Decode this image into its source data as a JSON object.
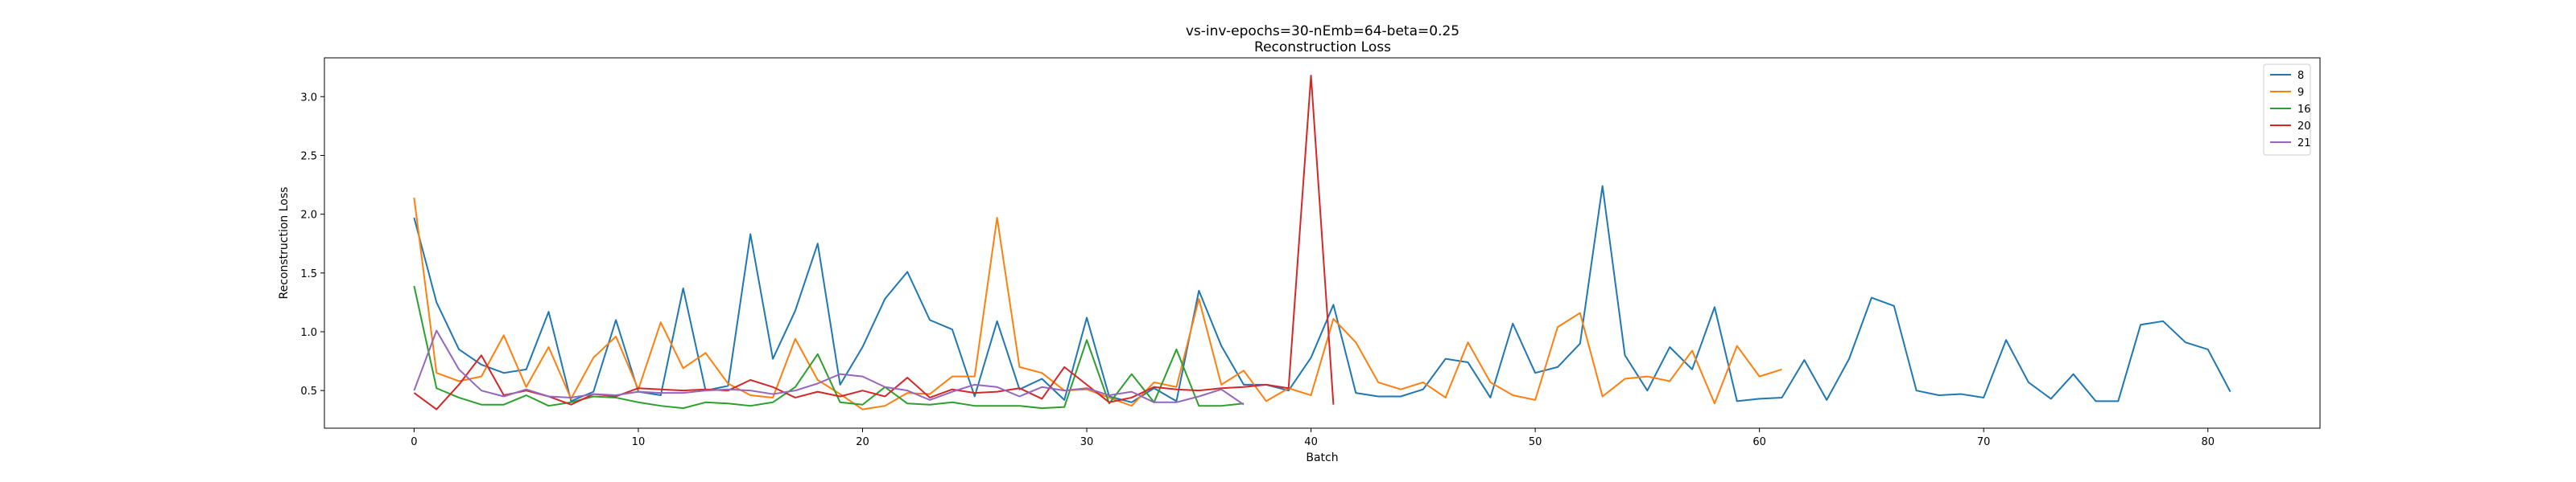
{
  "chart_data": {
    "type": "line",
    "title": "vs-inv-epochs=30-nEmb=64-beta=0.25",
    "subtitle": "Reconstruction Loss",
    "xlabel": "Batch",
    "ylabel": "Reconstruction Loss",
    "xlim": [
      -4,
      85
    ],
    "ylim": [
      0.18,
      3.33
    ],
    "xticks": [
      0,
      10,
      20,
      30,
      40,
      50,
      60,
      70,
      80
    ],
    "yticks": [
      0.5,
      1.0,
      1.5,
      2.0,
      2.5,
      3.0
    ],
    "grid": false,
    "legend_position": "top-right",
    "series": [
      {
        "name": "8",
        "color": "#1f77b4",
        "values": [
          1.97,
          1.25,
          0.85,
          0.72,
          0.65,
          0.68,
          1.17,
          0.41,
          0.49,
          1.1,
          0.49,
          0.46,
          1.37,
          0.5,
          0.54,
          1.83,
          0.77,
          1.18,
          1.75,
          0.55,
          0.87,
          1.28,
          1.51,
          1.1,
          1.02,
          0.45,
          1.09,
          0.51,
          0.6,
          0.42,
          1.12,
          0.45,
          0.4,
          0.52,
          0.41,
          1.35,
          0.88,
          0.55,
          0.55,
          0.5,
          0.78,
          1.23,
          0.48,
          0.45,
          0.45,
          0.51,
          0.77,
          0.74,
          0.44,
          1.07,
          0.65,
          0.7,
          0.9,
          2.24,
          0.8,
          0.5,
          0.87,
          0.68,
          1.21,
          0.41,
          0.43,
          0.44,
          0.76,
          0.42,
          0.77,
          1.29,
          1.22,
          0.5,
          0.46,
          0.47,
          0.44,
          0.93,
          0.57,
          0.43,
          0.64,
          0.41,
          0.41,
          1.06,
          1.09,
          0.91,
          0.85,
          0.49
        ]
      },
      {
        "name": "9",
        "color": "#ff7f0e",
        "values": [
          2.14,
          0.65,
          0.58,
          0.62,
          0.97,
          0.53,
          0.87,
          0.43,
          0.78,
          0.96,
          0.51,
          1.08,
          0.69,
          0.82,
          0.56,
          0.46,
          0.44,
          0.94,
          0.59,
          0.47,
          0.34,
          0.37,
          0.48,
          0.47,
          0.62,
          0.62,
          1.97,
          0.7,
          0.65,
          0.5,
          0.51,
          0.44,
          0.37,
          0.57,
          0.53,
          1.28,
          0.55,
          0.67,
          0.41,
          0.52,
          0.46,
          1.11,
          0.91,
          0.57,
          0.51,
          0.57,
          0.44,
          0.91,
          0.57,
          0.46,
          0.42,
          1.04,
          1.16,
          0.45,
          0.6,
          0.62,
          0.58,
          0.84,
          0.39,
          0.88,
          0.62,
          0.68
        ]
      },
      {
        "name": "16",
        "color": "#2ca02c",
        "values": [
          1.39,
          0.52,
          0.44,
          0.38,
          0.38,
          0.46,
          0.37,
          0.4,
          0.45,
          0.44,
          0.4,
          0.37,
          0.35,
          0.4,
          0.39,
          0.37,
          0.4,
          0.53,
          0.81,
          0.4,
          0.38,
          0.53,
          0.39,
          0.38,
          0.4,
          0.37,
          0.37,
          0.37,
          0.35,
          0.36,
          0.93,
          0.39,
          0.64,
          0.4,
          0.85,
          0.37,
          0.37,
          0.39
        ]
      },
      {
        "name": "20",
        "color": "#d62728",
        "values": [
          0.48,
          0.34,
          0.55,
          0.8,
          0.46,
          0.5,
          0.45,
          0.38,
          0.47,
          0.45,
          0.52,
          0.51,
          0.5,
          0.51,
          0.5,
          0.59,
          0.53,
          0.44,
          0.49,
          0.45,
          0.5,
          0.45,
          0.61,
          0.44,
          0.51,
          0.48,
          0.49,
          0.52,
          0.43,
          0.7,
          0.55,
          0.4,
          0.44,
          0.53,
          0.51,
          0.5,
          0.52,
          0.53,
          0.55,
          0.52,
          3.18,
          0.38
        ]
      },
      {
        "name": "21",
        "color": "#9467bd",
        "values": [
          0.5,
          1.01,
          0.68,
          0.5,
          0.45,
          0.51,
          0.45,
          0.44,
          0.47,
          0.46,
          0.49,
          0.48,
          0.48,
          0.5,
          0.51,
          0.5,
          0.47,
          0.5,
          0.56,
          0.64,
          0.62,
          0.53,
          0.5,
          0.42,
          0.49,
          0.55,
          0.53,
          0.45,
          0.53,
          0.5,
          0.52,
          0.46,
          0.49,
          0.4,
          0.4,
          0.45,
          0.51,
          0.38
        ]
      }
    ]
  }
}
